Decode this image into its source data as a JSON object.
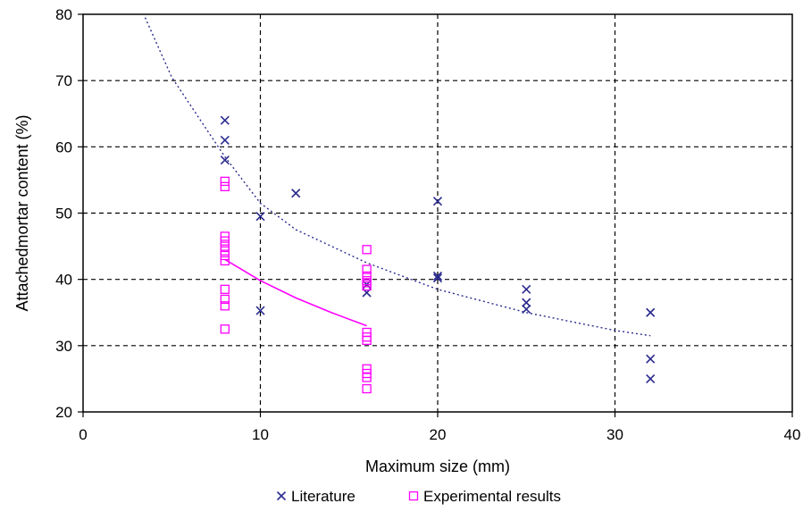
{
  "chart_data": {
    "type": "scatter",
    "title": "",
    "xlabel": "Maximum size (mm)",
    "ylabel": "Attachedmortar content (%)",
    "xlim": [
      0,
      40
    ],
    "ylim": [
      20,
      80
    ],
    "x_ticks": [
      0,
      10,
      20,
      30,
      40
    ],
    "y_ticks": [
      20,
      30,
      40,
      50,
      60,
      70,
      80
    ],
    "grid": true,
    "grid_style": "dashed",
    "legend_position": "bottom-center",
    "series": [
      {
        "name": "Literature",
        "marker": "x",
        "color": "#2b2b8f",
        "points": [
          [
            8,
            64
          ],
          [
            8,
            61
          ],
          [
            8,
            58
          ],
          [
            10,
            49.5
          ],
          [
            10,
            35.3
          ],
          [
            12,
            53
          ],
          [
            16,
            39.2
          ],
          [
            16,
            38
          ],
          [
            20,
            51.8
          ],
          [
            20,
            40.5
          ],
          [
            20,
            40.2
          ],
          [
            25,
            38.5
          ],
          [
            25,
            36.5
          ],
          [
            25,
            35.5
          ],
          [
            32,
            35
          ],
          [
            32,
            28
          ],
          [
            32,
            25
          ]
        ]
      },
      {
        "name": "Experimental results",
        "marker": "square",
        "color": "#ff00ff",
        "points": [
          [
            8,
            54.8
          ],
          [
            8,
            54
          ],
          [
            8,
            46.5
          ],
          [
            8,
            45.8
          ],
          [
            8,
            45
          ],
          [
            8,
            44.3
          ],
          [
            8,
            43.6
          ],
          [
            8,
            42.8
          ],
          [
            8,
            38.5
          ],
          [
            8,
            37
          ],
          [
            8,
            36
          ],
          [
            8,
            32.5
          ],
          [
            16,
            44.5
          ],
          [
            16,
            41.5
          ],
          [
            16,
            40.5
          ],
          [
            16,
            39.8
          ],
          [
            16,
            39.5
          ],
          [
            16,
            39
          ],
          [
            16,
            32
          ],
          [
            16,
            31.3
          ],
          [
            16,
            30.8
          ],
          [
            16,
            26.5
          ],
          [
            16,
            25.8
          ],
          [
            16,
            25.2
          ],
          [
            16,
            23.5
          ]
        ]
      }
    ],
    "trendlines": [
      {
        "series": "Literature",
        "style": "dotted",
        "color": "#2b2b8f",
        "points": [
          [
            3.5,
            79.5
          ],
          [
            5,
            70.5
          ],
          [
            8,
            58.5
          ],
          [
            10,
            51.5
          ],
          [
            12,
            47.5
          ],
          [
            16,
            42.5
          ],
          [
            20,
            38.5
          ],
          [
            25,
            35
          ],
          [
            30,
            32.3
          ],
          [
            32,
            31.5
          ]
        ]
      },
      {
        "series": "Experimental results",
        "style": "solid",
        "color": "#ff00ff",
        "points": [
          [
            8,
            43
          ],
          [
            10,
            39.8
          ],
          [
            12,
            37.2
          ],
          [
            14,
            35
          ],
          [
            16,
            33
          ]
        ]
      }
    ]
  }
}
